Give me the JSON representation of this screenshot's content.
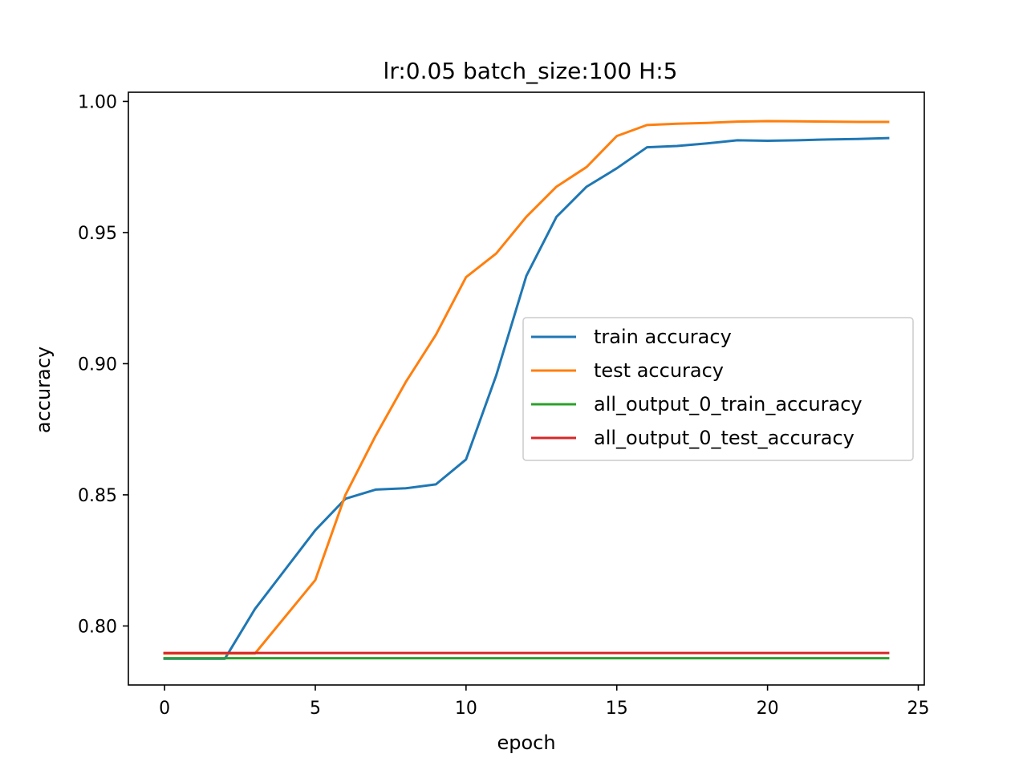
{
  "chart_data": {
    "type": "line",
    "title": "lr:0.05 batch_size:100 H:5",
    "xlabel": "epoch",
    "ylabel": "accuracy",
    "xlim": [
      -1.2,
      25.2
    ],
    "ylim": [
      0.7775,
      1.0035
    ],
    "xticks": [
      0,
      5,
      10,
      15,
      20,
      25
    ],
    "yticks": [
      0.8,
      0.85,
      0.9,
      0.95,
      1.0
    ],
    "xtick_labels": [
      "0",
      "5",
      "10",
      "15",
      "20",
      "25"
    ],
    "ytick_labels": [
      "0.80",
      "0.85",
      "0.90",
      "0.95",
      "1.00"
    ],
    "grid": false,
    "legend_position": "center-right",
    "x": [
      0,
      1,
      2,
      3,
      4,
      5,
      6,
      7,
      8,
      9,
      10,
      11,
      12,
      13,
      14,
      15,
      16,
      17,
      18,
      19,
      20,
      21,
      22,
      23,
      24
    ],
    "series": [
      {
        "name": "train accuracy",
        "color": "#1f77b4",
        "values": [
          0.7875,
          0.7875,
          0.7875,
          0.8065,
          0.8215,
          0.8365,
          0.8485,
          0.852,
          0.8525,
          0.854,
          0.8635,
          0.8955,
          0.9335,
          0.956,
          0.9675,
          0.9745,
          0.9825,
          0.983,
          0.984,
          0.9852,
          0.985,
          0.9852,
          0.9855,
          0.9857,
          0.986
        ]
      },
      {
        "name": "test accuracy",
        "color": "#ff7f0e",
        "values": [
          0.7895,
          0.7895,
          0.7895,
          0.7895,
          0.8035,
          0.8175,
          0.85,
          0.8725,
          0.893,
          0.911,
          0.933,
          0.942,
          0.956,
          0.9675,
          0.975,
          0.9868,
          0.991,
          0.9915,
          0.9918,
          0.9923,
          0.9925,
          0.9924,
          0.9923,
          0.9922,
          0.9922
        ]
      },
      {
        "name": "all_output_0_train_accuracy",
        "color": "#2ca02c",
        "values": [
          0.7877,
          0.7877,
          0.7877,
          0.7877,
          0.7877,
          0.7877,
          0.7877,
          0.7877,
          0.7877,
          0.7877,
          0.7877,
          0.7877,
          0.7877,
          0.7877,
          0.7877,
          0.7877,
          0.7877,
          0.7877,
          0.7877,
          0.7877,
          0.7877,
          0.7877,
          0.7877,
          0.7877,
          0.7877
        ]
      },
      {
        "name": "all_output_0_test_accuracy",
        "color": "#d62728",
        "values": [
          0.7897,
          0.7897,
          0.7897,
          0.7897,
          0.7897,
          0.7897,
          0.7897,
          0.7897,
          0.7897,
          0.7897,
          0.7897,
          0.7897,
          0.7897,
          0.7897,
          0.7897,
          0.7897,
          0.7897,
          0.7897,
          0.7897,
          0.7897,
          0.7897,
          0.7897,
          0.7897,
          0.7897,
          0.7897
        ]
      }
    ]
  }
}
